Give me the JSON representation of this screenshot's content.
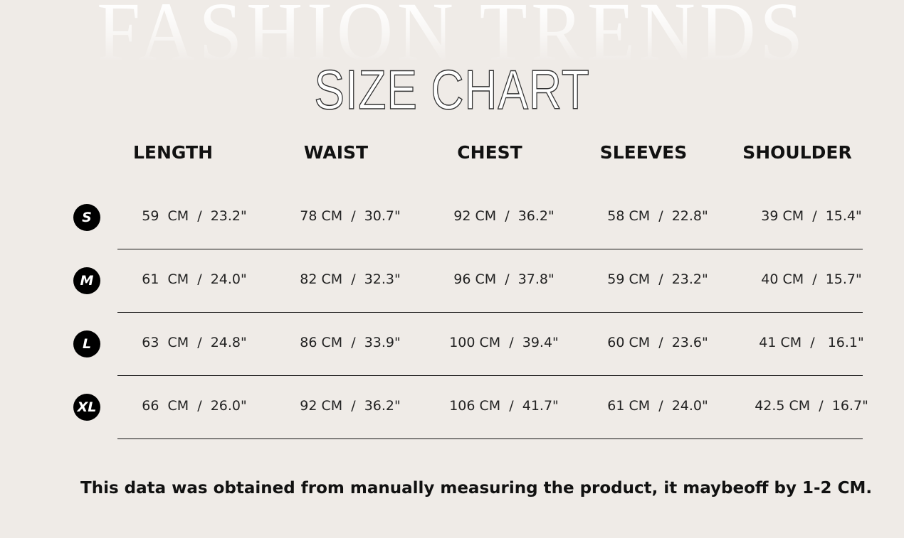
{
  "background_text": "FASHION TRENDS",
  "title": "SIZE CHART",
  "columns": [
    "LENGTH",
    "WAIST",
    "CHEST",
    "SLEEVES",
    "SHOULDER"
  ],
  "rows": [
    {
      "size": "S",
      "values": [
        "59  CM  /  23.2\"",
        "78 CM  /  30.7\"",
        "92 CM  /  36.2\"",
        "58 CM  /  22.8\"",
        "39 CM  /  15.4\""
      ]
    },
    {
      "size": "M",
      "values": [
        "61  CM  /  24.0\"",
        "82 CM  /  32.3\"",
        "96 CM  /  37.8\"",
        "59 CM  /  23.2\"",
        "40 CM  /  15.7\""
      ]
    },
    {
      "size": "L",
      "values": [
        "63  CM  /  24.8\"",
        "86 CM  /  33.9\"",
        "100 CM  /  39.4\"",
        "60 CM  /  23.6\"",
        "41 CM  /   16.1\""
      ]
    },
    {
      "size": "XL",
      "values": [
        "66  CM  /  26.0\"",
        "92 CM  /  36.2\"",
        "106 CM  /  41.7\"",
        "61 CM  /  24.0\"",
        "42.5 CM  /  16.7\""
      ]
    }
  ],
  "note": "This data was obtained from manually measuring the product, it maybeoff by 1-2 CM.",
  "colors": {
    "background": "#efebe7",
    "text": "#111111",
    "badge": "#000000"
  }
}
